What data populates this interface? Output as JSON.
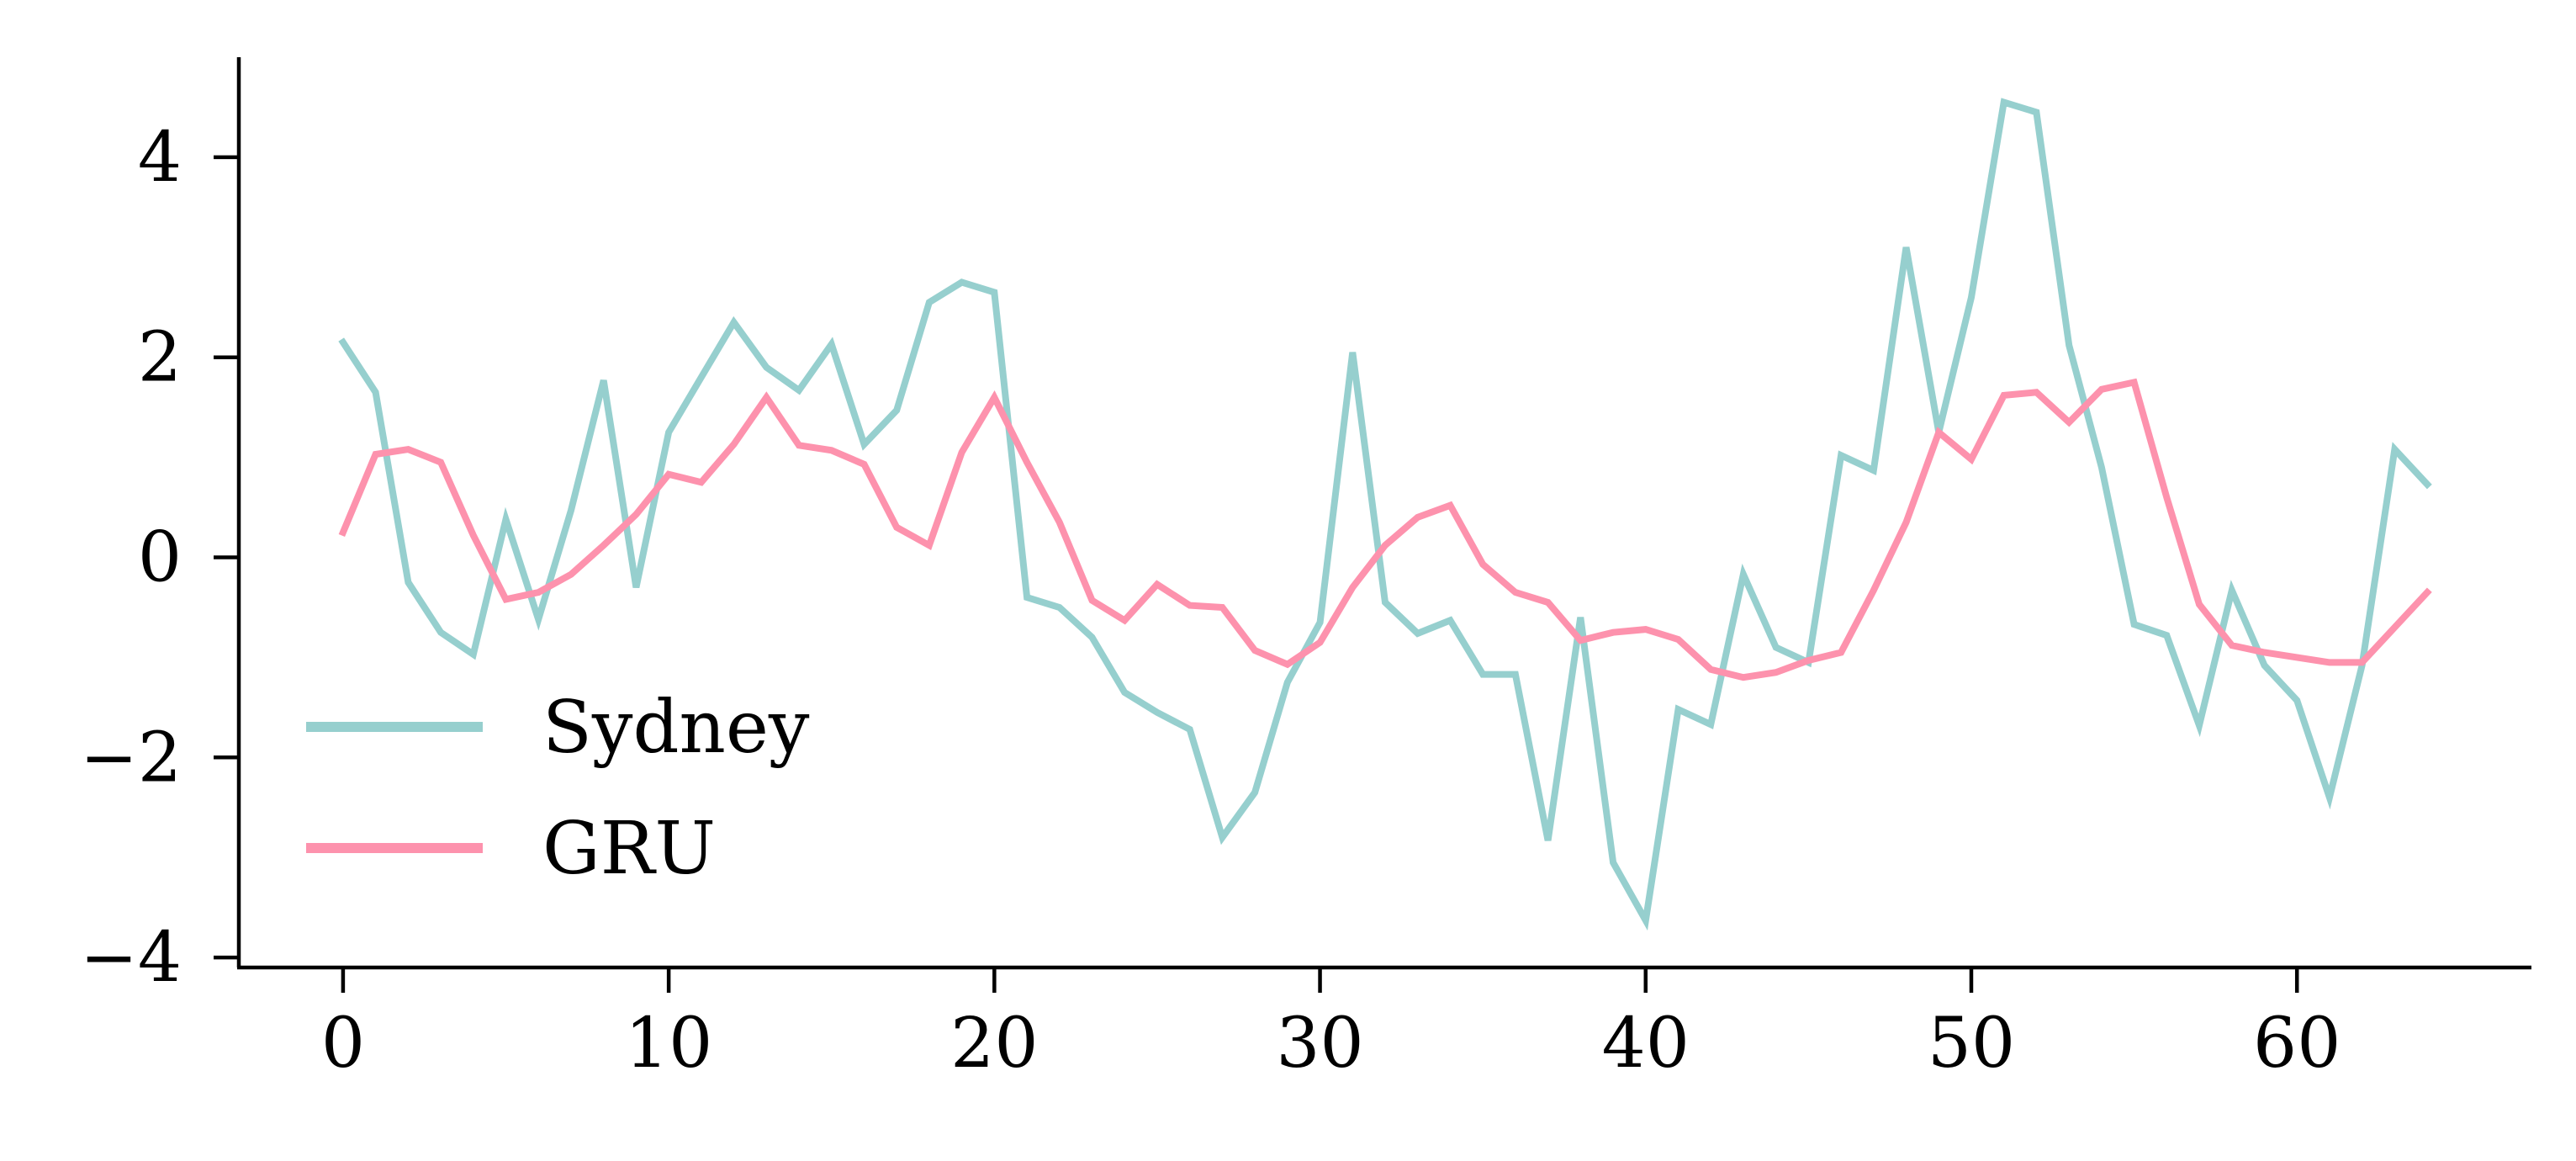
{
  "chart_data": {
    "type": "line",
    "title": "",
    "xlabel": "",
    "ylabel": "",
    "xlim": [
      -3.2,
      67.2
    ],
    "ylim": [
      -4.1,
      5.0
    ],
    "xticks": [
      0,
      10,
      20,
      30,
      40,
      50,
      60
    ],
    "yticks": [
      -4,
      -2,
      0,
      2,
      4
    ],
    "xtick_labels": [
      "0",
      "10",
      "20",
      "30",
      "40",
      "50",
      "60"
    ],
    "ytick_labels": [
      "−4",
      "−2",
      "0",
      "2",
      "4"
    ],
    "grid": false,
    "legend_position": "lower-left",
    "x": [
      0,
      1,
      2,
      3,
      4,
      5,
      6,
      7,
      8,
      9,
      10,
      11,
      12,
      13,
      14,
      15,
      16,
      17,
      18,
      19,
      20,
      21,
      22,
      23,
      24,
      25,
      26,
      27,
      28,
      29,
      30,
      31,
      32,
      33,
      34,
      35,
      36,
      37,
      38,
      39,
      40,
      41,
      42,
      43,
      44,
      45,
      46,
      47,
      48,
      49,
      50,
      51,
      52,
      53,
      54,
      55,
      56,
      57,
      58,
      59,
      60,
      61,
      62,
      63,
      64
    ],
    "series": [
      {
        "name": "Sydney",
        "color": "#96cfce",
        "values": [
          2.15,
          1.65,
          -0.25,
          -0.75,
          -0.97,
          0.38,
          -0.62,
          0.47,
          1.77,
          -0.3,
          1.25,
          1.8,
          2.35,
          1.9,
          1.67,
          2.13,
          1.13,
          1.47,
          2.55,
          2.75,
          2.65,
          -0.4,
          -0.5,
          -0.8,
          -1.35,
          -1.55,
          -1.72,
          -2.8,
          -2.35,
          -1.25,
          -0.65,
          2.05,
          -0.45,
          -0.76,
          -0.63,
          -1.17,
          -1.17,
          -2.83,
          -0.6,
          -3.05,
          -3.63,
          -1.52,
          -1.67,
          -0.17,
          -0.9,
          -1.05,
          1.02,
          0.87,
          3.1,
          1.25,
          2.6,
          4.55,
          4.45,
          2.12,
          0.9,
          -0.67,
          -0.78,
          -1.68,
          -0.33,
          -1.08,
          -1.43,
          -2.4,
          -1.08,
          1.08,
          0.73
        ]
      },
      {
        "name": "GRU",
        "color": "#fd92ad",
        "values": [
          0.25,
          1.03,
          1.08,
          0.95,
          0.22,
          -0.42,
          -0.35,
          -0.17,
          0.12,
          0.43,
          0.83,
          0.75,
          1.13,
          1.6,
          1.12,
          1.07,
          0.93,
          0.3,
          0.12,
          1.05,
          1.6,
          0.95,
          0.35,
          -0.43,
          -0.63,
          -0.27,
          -0.48,
          -0.5,
          -0.93,
          -1.07,
          -0.85,
          -0.3,
          0.12,
          0.4,
          0.52,
          -0.07,
          -0.35,
          -0.45,
          -0.83,
          -0.75,
          -0.72,
          -0.82,
          -1.12,
          -1.2,
          -1.15,
          -1.03,
          -0.95,
          -0.33,
          0.35,
          1.25,
          0.98,
          1.62,
          1.65,
          1.35,
          1.68,
          1.75,
          0.6,
          -0.47,
          -0.88,
          -0.95,
          -1.0,
          -1.05,
          -1.05,
          -0.7,
          -0.35
        ]
      }
    ]
  }
}
